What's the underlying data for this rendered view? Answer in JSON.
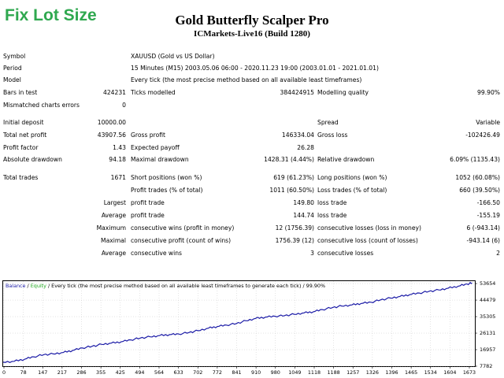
{
  "watermark": "Fix Lot Size",
  "header": {
    "title": "Gold Butterfly Scalper Pro",
    "subtitle": "ICMarkets-Live16 (Build 1280)"
  },
  "summary": {
    "symbol_label": "Symbol",
    "symbol_value": "XAUUSD (Gold vs US Dollar)",
    "period_label": "Period",
    "period_value": "15 Minutes (M15) 2003.05.06 06:00 - 2020.11.23 19:00 (2003.01.01 - 2021.01.01)",
    "model_label": "Model",
    "model_value": "Every tick (the most precise method based on all available least timeframes)",
    "bars_label": "Bars in test",
    "bars_value": "424231",
    "ticks_label": "Ticks modelled",
    "ticks_value": "384424915",
    "quality_label": "Modelling quality",
    "quality_value": "99.90%",
    "mismatch_label": "Mismatched charts errors",
    "mismatch_value": "0"
  },
  "results": {
    "deposit_label": "Initial deposit",
    "deposit_value": "10000.00",
    "spread_label": "Spread",
    "spread_value": "Variable",
    "net_label": "Total net profit",
    "net_value": "43907.56",
    "gross_profit_label": "Gross profit",
    "gross_profit_value": "146334.04",
    "gross_loss_label": "Gross loss",
    "gross_loss_value": "-102426.49",
    "pf_label": "Profit factor",
    "pf_value": "1.43",
    "payoff_label": "Expected payoff",
    "payoff_value": "26.28",
    "abs_dd_label": "Absolute drawdown",
    "abs_dd_value": "94.18",
    "max_dd_label": "Maximal drawdown",
    "max_dd_value": "1428.31 (4.44%)",
    "rel_dd_label": "Relative drawdown",
    "rel_dd_value": "6.09% (1135.43)"
  },
  "trades": {
    "total_label": "Total trades",
    "total_value": "1671",
    "short_label": "Short positions (won %)",
    "short_value": "619 (61.23%)",
    "long_label": "Long positions (won %)",
    "long_value": "1052 (60.08%)",
    "pt_label": "Profit trades (% of total)",
    "pt_value": "1011 (60.50%)",
    "lt_label": "Loss trades (% of total)",
    "lt_value": "660 (39.50%)",
    "largest_label": "Largest",
    "largest_pt_label": "profit trade",
    "largest_pt_value": "149.80",
    "largest_lt_label": "loss trade",
    "largest_lt_value": "-166.50",
    "average_label": "Average",
    "average_pt_label": "profit trade",
    "average_pt_value": "144.74",
    "average_lt_label": "loss trade",
    "average_lt_value": "-155.19",
    "maximum_label": "Maximum",
    "max_cw_label": "consecutive wins (profit in money)",
    "max_cw_value": "12 (1756.39)",
    "max_cl_label": "consecutive losses (loss in money)",
    "max_cl_value": "6 (-943.14)",
    "maximal_label": "Maximal",
    "maxl_cp_label": "consecutive profit (count of wins)",
    "maxl_cp_value": "1756.39 (12)",
    "maxl_cl_label": "consecutive loss (count of losses)",
    "maxl_cl_value": "-943.14 (6)",
    "average2_label": "Average",
    "avg_cw_label": "consecutive wins",
    "avg_cw_value": "3",
    "avg_cl_label": "consecutive losses",
    "avg_cl_value": "2"
  },
  "chart_data": {
    "type": "line",
    "legend": {
      "balance": "Balance",
      "sep1": " / ",
      "equity": "Equity",
      "sep2": " / ",
      "rest": "Every tick (the most precise method based on all available least timeframes to generate each tick)",
      "sep3": " / ",
      "quality": "99.90%"
    },
    "colors": {
      "balance": "#1a1aa6",
      "equity": "#22aa22",
      "grid": "#c8c8c8"
    },
    "xticks": [
      "0",
      "78",
      "147",
      "217",
      "286",
      "355",
      "425",
      "494",
      "564",
      "633",
      "702",
      "772",
      "841",
      "910",
      "980",
      "1049",
      "1118",
      "1188",
      "1257",
      "1326",
      "1396",
      "1465",
      "1534",
      "1604",
      "1673"
    ],
    "yticks": [
      "53654",
      "44479",
      "35305",
      "26131",
      "16957",
      "7782"
    ],
    "xlim": [
      0,
      1700
    ],
    "ylim": [
      7782,
      55000
    ],
    "series": [
      {
        "name": "Balance",
        "x": [
          0,
          40,
          78,
          110,
          147,
          180,
          217,
          250,
          286,
          320,
          355,
          390,
          425,
          460,
          494,
          530,
          564,
          600,
          633,
          670,
          702,
          740,
          772,
          805,
          841,
          875,
          910,
          945,
          980,
          1015,
          1049,
          1085,
          1118,
          1150,
          1188,
          1220,
          1257,
          1290,
          1326,
          1360,
          1396,
          1430,
          1465,
          1500,
          1534,
          1570,
          1604,
          1640,
          1673,
          1690
        ],
        "values": [
          10000,
          10500,
          11700,
          13000,
          14200,
          14600,
          15400,
          16500,
          17900,
          18800,
          19900,
          20600,
          21300,
          22400,
          23400,
          24100,
          24800,
          25300,
          25600,
          26500,
          27500,
          28900,
          29800,
          30600,
          31500,
          33000,
          34300,
          35000,
          35500,
          35900,
          36600,
          37400,
          38000,
          39200,
          40400,
          41200,
          41800,
          42600,
          43300,
          44600,
          45600,
          46500,
          47500,
          48400,
          49300,
          50100,
          51100,
          52200,
          53400,
          54000
        ]
      }
    ]
  }
}
